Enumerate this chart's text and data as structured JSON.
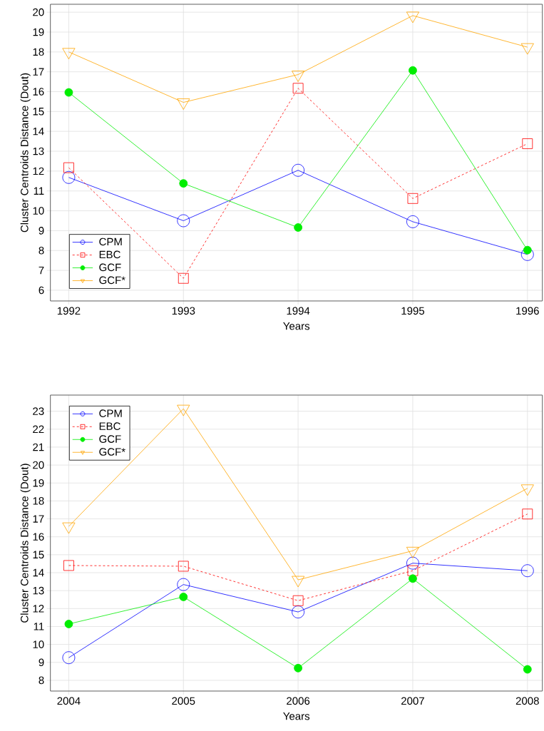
{
  "chart_data": [
    {
      "type": "line",
      "xlabel": "Years",
      "ylabel": "Cluster Centroids Distance (Dout)",
      "x": [
        1992,
        1993,
        1994,
        1995,
        1996
      ],
      "xlim": [
        1991.84,
        1996.13
      ],
      "xticks": [
        1992,
        1993,
        1994,
        1995,
        1996
      ],
      "ylim": [
        5.46,
        20.4
      ],
      "yticks": [
        6,
        7,
        8,
        9,
        10,
        11,
        12,
        13,
        14,
        15,
        16,
        17,
        18,
        19,
        20
      ],
      "grid": true,
      "legend": "bottom left",
      "series": [
        {
          "name": "CPM",
          "color": "#0000ff",
          "marker": "circle",
          "line_style": "solid",
          "values": [
            11.68,
            9.5,
            12.04,
            9.45,
            7.8
          ]
        },
        {
          "name": "EBC",
          "color": "#ff0000",
          "marker": "square",
          "line_style": "dashed",
          "values": [
            12.17,
            6.6,
            16.17,
            10.62,
            13.38
          ]
        },
        {
          "name": "GCF",
          "color": "#00ee00",
          "marker": "filled circle",
          "line_style": "solid",
          "values": [
            15.96,
            11.38,
            9.16,
            17.07,
            8.02
          ]
        },
        {
          "name": "GCF*",
          "color": "#ffa500",
          "marker": "triangle",
          "line_style": "solid",
          "values": [
            18.0,
            15.46,
            16.86,
            19.83,
            18.24
          ]
        }
      ]
    },
    {
      "type": "line",
      "xlabel": "Years",
      "ylabel": "Cluster Centroids Distance (Dout)",
      "x": [
        2004,
        2005,
        2006,
        2007,
        2008
      ],
      "xlim": [
        2003.84,
        2008.13
      ],
      "xticks": [
        2004,
        2005,
        2006,
        2007,
        2008
      ],
      "ylim": [
        7.4,
        23.9
      ],
      "yticks": [
        8,
        9,
        10,
        11,
        12,
        13,
        14,
        15,
        16,
        17,
        18,
        19,
        20,
        21,
        22,
        23
      ],
      "grid": true,
      "legend": "top left",
      "series": [
        {
          "name": "CPM",
          "color": "#0000ff",
          "marker": "circle",
          "line_style": "solid",
          "values": [
            9.26,
            13.34,
            11.81,
            14.53,
            14.11
          ]
        },
        {
          "name": "EBC",
          "color": "#ff0000",
          "marker": "square",
          "line_style": "dashed",
          "values": [
            14.4,
            14.36,
            12.44,
            14.11,
            17.27
          ]
        },
        {
          "name": "GCF",
          "color": "#00ee00",
          "marker": "filled circle",
          "line_style": "solid",
          "values": [
            11.14,
            12.65,
            8.68,
            13.67,
            8.61
          ]
        },
        {
          "name": "GCF*",
          "color": "#ffa500",
          "marker": "triangle",
          "line_style": "solid",
          "values": [
            16.58,
            23.14,
            13.6,
            15.22,
            18.7
          ]
        }
      ]
    }
  ]
}
